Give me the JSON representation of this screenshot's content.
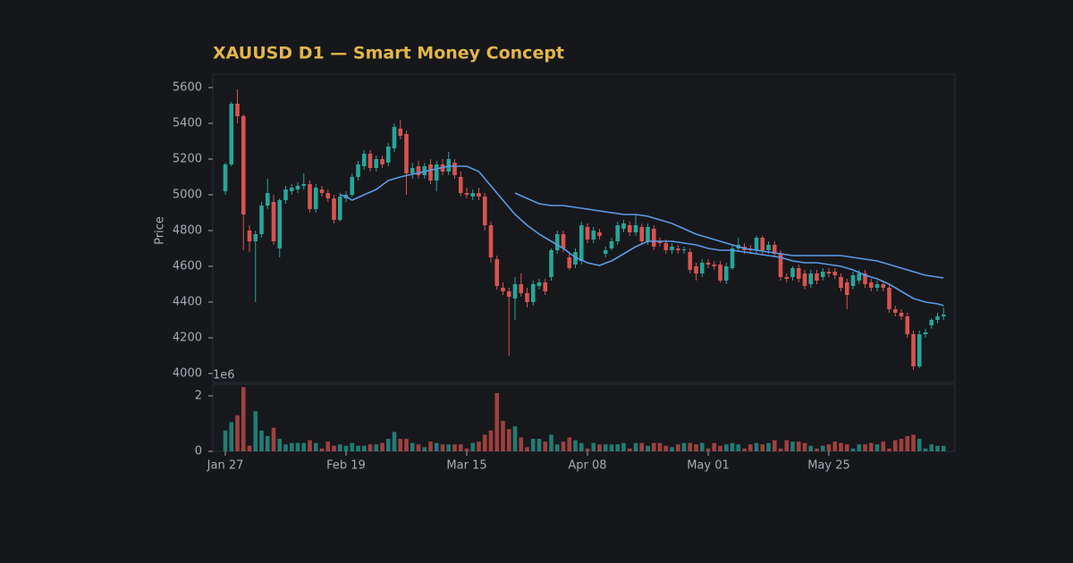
{
  "chart_data": {
    "type": "candlestick",
    "title": "XAUUSD D1 — Smart Money Concept",
    "ylabel": "Price",
    "categories": [
      "Jan 27",
      null,
      null,
      null,
      null,
      null,
      null,
      null,
      null,
      null,
      null,
      null,
      null,
      null,
      null,
      null,
      null,
      null,
      null,
      null,
      "Feb 19",
      null,
      null,
      null,
      null,
      null,
      null,
      null,
      null,
      null,
      null,
      null,
      null,
      null,
      null,
      null,
      null,
      null,
      null,
      null,
      "Mar 15",
      null,
      null,
      null,
      null,
      null,
      null,
      null,
      null,
      null,
      null,
      null,
      null,
      null,
      null,
      null,
      null,
      null,
      null,
      null,
      "Apr 08",
      null,
      null,
      null,
      null,
      null,
      null,
      null,
      null,
      null,
      null,
      null,
      null,
      null,
      null,
      null,
      null,
      null,
      null,
      null,
      "May 01",
      null,
      null,
      null,
      null,
      null,
      null,
      null,
      null,
      null,
      null,
      null,
      null,
      null,
      null,
      null,
      null,
      null,
      null,
      null,
      "May 25",
      null,
      null,
      null,
      null,
      null,
      null,
      null,
      null,
      null,
      null,
      null,
      null,
      null,
      null,
      null,
      null,
      null,
      null,
      null
    ],
    "open": [
      5020,
      5170,
      5510,
      5440,
      4800,
      4740,
      4780,
      4940,
      4960,
      4700,
      4970,
      5020,
      5030,
      5050,
      5060,
      4920,
      5030,
      5010,
      4980,
      4860,
      4980,
      5000,
      5100,
      5160,
      5230,
      5150,
      5200,
      5180,
      5260,
      5370,
      5340,
      5120,
      5160,
      5110,
      5170,
      5080,
      5170,
      5130,
      5180,
      5100,
      5010,
      4990,
      5010,
      4990,
      4830,
      4640,
      4480,
      4460,
      4420,
      4500,
      4450,
      4400,
      4490,
      4510,
      4540,
      4690,
      4780,
      4650,
      4610,
      4630,
      4820,
      4750,
      4790,
      4670,
      4700,
      4740,
      4810,
      4830,
      4790,
      4820,
      4740,
      4810,
      4740,
      4730,
      4690,
      4700,
      4690,
      4680,
      4600,
      4560,
      4620,
      4610,
      4610,
      4520,
      4590,
      4700,
      4710,
      4700,
      4690,
      4760,
      4690,
      4720,
      4670,
      4540,
      4540,
      4590,
      4560,
      4500,
      4560,
      4540,
      4570,
      4570,
      4540,
      4510,
      4490,
      4520,
      4560,
      4510,
      4480,
      4500,
      4480,
      4360,
      4340,
      4320,
      4220,
      4040,
      4220,
      4270,
      4300,
      4320
    ],
    "high": [
      5180,
      5520,
      5590,
      5450,
      4830,
      4800,
      4960,
      5090,
      5000,
      4980,
      5050,
      5060,
      5070,
      5120,
      5080,
      5060,
      5050,
      5030,
      5000,
      5010,
      5020,
      5120,
      5190,
      5250,
      5250,
      5220,
      5220,
      5290,
      5400,
      5420,
      5360,
      5180,
      5190,
      5180,
      5200,
      5190,
      5200,
      5240,
      5200,
      5130,
      5040,
      5030,
      5040,
      5010,
      4850,
      4660,
      4510,
      4480,
      4540,
      4560,
      4480,
      4520,
      4530,
      4530,
      4700,
      4800,
      4800,
      4670,
      4700,
      4850,
      4840,
      4820,
      4810,
      4710,
      4760,
      4850,
      4860,
      4850,
      4890,
      4840,
      4840,
      4830,
      4760,
      4750,
      4730,
      4720,
      4710,
      4700,
      4620,
      4640,
      4640,
      4630,
      4630,
      4620,
      4720,
      4760,
      4730,
      4720,
      4770,
      4770,
      4740,
      4740,
      4690,
      4560,
      4600,
      4610,
      4580,
      4580,
      4580,
      4590,
      4590,
      4590,
      4560,
      4530,
      4570,
      4580,
      4580,
      4530,
      4520,
      4520,
      4500,
      4380,
      4360,
      4340,
      4240,
      4240,
      4250,
      4310,
      4340,
      4370
    ],
    "low": [
      5000,
      5160,
      5400,
      4690,
      4680,
      4400,
      4760,
      4920,
      4720,
      4650,
      4950,
      5000,
      5010,
      5030,
      4900,
      4900,
      4990,
      4960,
      4840,
      4850,
      4960,
      4990,
      5080,
      5140,
      5130,
      5130,
      5150,
      5160,
      5240,
      5310,
      5000,
      5090,
      5090,
      5090,
      5060,
      5020,
      5110,
      5110,
      5090,
      4990,
      4980,
      4970,
      4970,
      4800,
      4620,
      4470,
      4440,
      4100,
      4300,
      4430,
      4370,
      4380,
      4470,
      4440,
      4520,
      4670,
      4680,
      4580,
      4590,
      4610,
      4730,
      4730,
      4750,
      4650,
      4690,
      4720,
      4790,
      4770,
      4770,
      4720,
      4720,
      4690,
      4710,
      4670,
      4670,
      4670,
      4670,
      4560,
      4520,
      4540,
      4590,
      4580,
      4510,
      4500,
      4580,
      4680,
      4670,
      4670,
      4670,
      4670,
      4670,
      4650,
      4520,
      4510,
      4520,
      4510,
      4470,
      4480,
      4500,
      4520,
      4540,
      4530,
      4460,
      4360,
      4470,
      4500,
      4480,
      4460,
      4460,
      4460,
      4340,
      4320,
      4300,
      4200,
      4020,
      4030,
      4200,
      4250,
      4280,
      4300
    ],
    "close": [
      5170,
      5510,
      5440,
      4890,
      4740,
      4780,
      4940,
      5010,
      4740,
      4970,
      5030,
      5040,
      5050,
      5060,
      4920,
      5040,
      5010,
      4980,
      4860,
      4990,
      5000,
      5100,
      5170,
      5230,
      5150,
      5200,
      5170,
      5270,
      5380,
      5330,
      5120,
      5150,
      5110,
      5160,
      5080,
      5170,
      5130,
      5200,
      5110,
      5010,
      5000,
      5010,
      4990,
      4830,
      4650,
      4490,
      4460,
      4430,
      4500,
      4450,
      4400,
      4500,
      4510,
      4460,
      4690,
      4780,
      4700,
      4590,
      4680,
      4830,
      4750,
      4800,
      4770,
      4690,
      4740,
      4830,
      4840,
      4790,
      4830,
      4740,
      4820,
      4710,
      4730,
      4690,
      4710,
      4690,
      4695,
      4580,
      4560,
      4620,
      4610,
      4600,
      4520,
      4600,
      4700,
      4720,
      4690,
      4690,
      4760,
      4690,
      4720,
      4670,
      4540,
      4530,
      4590,
      4530,
      4490,
      4560,
      4520,
      4570,
      4560,
      4550,
      4480,
      4440,
      4550,
      4560,
      4500,
      4480,
      4500,
      4480,
      4360,
      4340,
      4320,
      4220,
      4040,
      4220,
      4230,
      4300,
      4320,
      4330
    ],
    "up_color": "#26a69a",
    "down_color": "#d9534f",
    "ylim": [
      3950,
      5675
    ],
    "yticks": [
      4000,
      4200,
      4400,
      4600,
      4800,
      5000,
      5200,
      5400,
      5600
    ],
    "lines": [
      {
        "color": "#5b9be8",
        "values": [
          null,
          null,
          null,
          null,
          null,
          null,
          null,
          null,
          null,
          null,
          null,
          null,
          null,
          null,
          null,
          null,
          null,
          null,
          null,
          5000,
          4990,
          4970,
          4985,
          5000,
          5015,
          5030,
          5055,
          5080,
          5090,
          5100,
          5108,
          5115,
          5122,
          5130,
          5138,
          5145,
          5153,
          5160,
          5160,
          5160,
          5160,
          5145,
          5130,
          5090,
          5050,
          5010,
          4970,
          4930,
          4890,
          4860,
          4830,
          4805,
          4780,
          4760,
          4740,
          4720,
          4700,
          4675,
          4650,
          4635,
          4620,
          4612,
          4605,
          4618,
          4630,
          4650,
          4670,
          4690,
          4710,
          4725,
          4740,
          4740,
          4740,
          4740,
          4740,
          4735,
          4730,
          4725,
          4720,
          4710,
          4700,
          4695,
          4690,
          4690,
          4690,
          4685,
          4680,
          4675,
          4670,
          4665,
          4660,
          4655,
          4650,
          4640,
          4630,
          4625,
          4620,
          4620,
          4620,
          4615,
          4610,
          4605,
          4600,
          4590,
          4580,
          4565,
          4550,
          4540,
          4530,
          4515,
          4500,
          4480,
          4460,
          4440,
          4420,
          4410,
          4400,
          4395,
          4390,
          4380
        ]
      },
      {
        "color": "#5b9be8",
        "values": [
          null,
          null,
          null,
          null,
          null,
          null,
          null,
          null,
          null,
          null,
          null,
          null,
          null,
          null,
          null,
          null,
          null,
          null,
          null,
          null,
          null,
          null,
          null,
          null,
          null,
          null,
          null,
          null,
          null,
          null,
          null,
          null,
          null,
          null,
          null,
          null,
          null,
          null,
          null,
          null,
          null,
          null,
          null,
          null,
          null,
          null,
          null,
          null,
          5010,
          4995,
          4980,
          4965,
          4950,
          4945,
          4940,
          4940,
          4940,
          4935,
          4930,
          4925,
          4920,
          4915,
          4910,
          4905,
          4900,
          4895,
          4890,
          4890,
          4890,
          4885,
          4880,
          4870,
          4860,
          4850,
          4840,
          4825,
          4810,
          4795,
          4780,
          4770,
          4760,
          4750,
          4740,
          4730,
          4720,
          4710,
          4700,
          4695,
          4690,
          4685,
          4680,
          4675,
          4670,
          4665,
          4660,
          4660,
          4660,
          4660,
          4660,
          4660,
          4660,
          4660,
          4660,
          4655,
          4650,
          4645,
          4640,
          4635,
          4630,
          4620,
          4610,
          4600,
          4590,
          4580,
          4570,
          4560,
          4550,
          4545,
          4540,
          4535
        ]
      }
    ],
    "volume": {
      "values": [
        0.75,
        1.05,
        1.3,
        2.32,
        0.2,
        1.45,
        0.75,
        0.55,
        0.85,
        0.45,
        0.25,
        0.3,
        0.3,
        0.3,
        0.4,
        0.3,
        0.1,
        0.35,
        0.2,
        0.25,
        0.2,
        0.3,
        0.2,
        0.2,
        0.25,
        0.25,
        0.3,
        0.45,
        0.7,
        0.45,
        0.45,
        0.3,
        0.25,
        0.15,
        0.35,
        0.3,
        0.25,
        0.25,
        0.25,
        0.25,
        0.1,
        0.3,
        0.35,
        0.6,
        0.75,
        2.1,
        1.1,
        0.8,
        0.9,
        0.5,
        0.15,
        0.45,
        0.45,
        0.35,
        0.6,
        0.25,
        0.35,
        0.5,
        0.4,
        0.3,
        0.1,
        0.3,
        0.25,
        0.25,
        0.25,
        0.25,
        0.3,
        0.1,
        0.3,
        0.3,
        0.2,
        0.3,
        0.3,
        0.2,
        0.15,
        0.25,
        0.3,
        0.3,
        0.25,
        0.3,
        0.1,
        0.3,
        0.2,
        0.25,
        0.3,
        0.25,
        0.1,
        0.25,
        0.3,
        0.25,
        0.3,
        0.4,
        0.1,
        0.4,
        0.35,
        0.35,
        0.3,
        0.2,
        0.1,
        0.2,
        0.25,
        0.35,
        0.3,
        0.25,
        0.1,
        0.25,
        0.25,
        0.3,
        0.25,
        0.35,
        0.1,
        0.4,
        0.45,
        0.55,
        0.6,
        0.45,
        0.1,
        0.25,
        0.2,
        0.2
      ],
      "ylim": [
        0,
        2.42
      ],
      "yticks": [
        0,
        2
      ],
      "offset_label": "1e6"
    }
  }
}
